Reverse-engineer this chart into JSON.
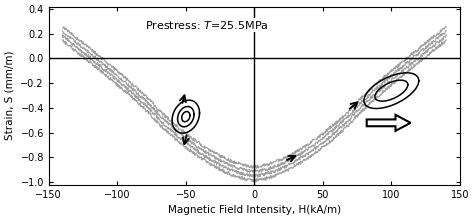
{
  "title": "Prestress: ",
  "title_italic": "T",
  "title_rest": "=25.5MPa",
  "xlabel": "Magnetic Field Intensity, H(kA/m)",
  "ylabel": "Strain, S (mm/m)",
  "xlim": [
    -150,
    150
  ],
  "ylim": [
    -1.02,
    0.42
  ],
  "xticks": [
    -150,
    -100,
    -50,
    0,
    50,
    100,
    150
  ],
  "yticks": [
    -1.0,
    -0.8,
    -0.6,
    -0.4,
    -0.2,
    0.0,
    0.2,
    0.4
  ],
  "gray_color": "#a0a0a0",
  "lw_gray": 0.9
}
